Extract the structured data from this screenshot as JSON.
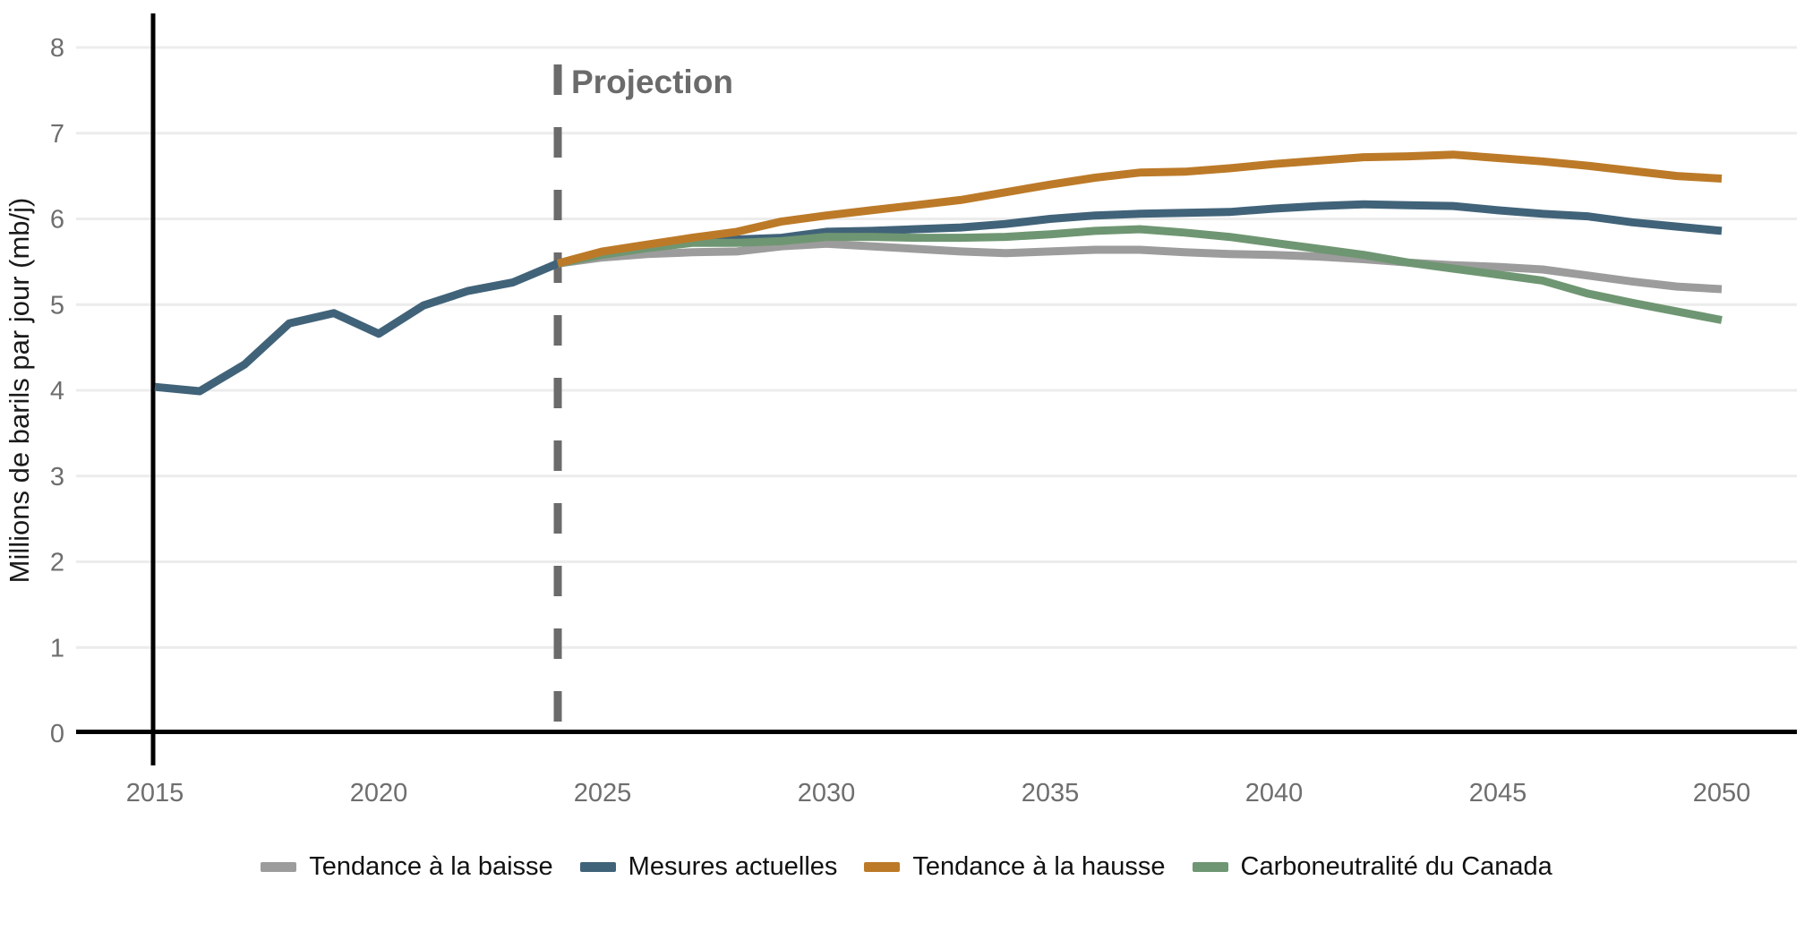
{
  "chart_data": {
    "type": "line",
    "title": "",
    "ylabel": "Millions de barils par jour (mb/j)",
    "xlabel": "",
    "ylim": [
      0,
      8
    ],
    "yticks": [
      0,
      1,
      2,
      3,
      4,
      5,
      6,
      7,
      8
    ],
    "xticks": [
      2015,
      2020,
      2025,
      2030,
      2035,
      2040,
      2045,
      2050
    ],
    "grid": "horizontal",
    "legend_position": "bottom",
    "projection_marker": {
      "year": 2024,
      "label": "Projection"
    },
    "colors": {
      "grid": "#ececec",
      "axis": "#000000",
      "tick_text": "#6e6e6e",
      "projection": "#6b6b6b",
      "ylabel_text": "#1a1a1a"
    },
    "series": [
      {
        "name": "Tendance à la baisse",
        "color": "#9c9c9c",
        "z": 1,
        "start_year": 2024,
        "step": 1,
        "values": [
          5.48,
          5.55,
          5.59,
          5.61,
          5.62,
          5.68,
          5.71,
          5.68,
          5.65,
          5.62,
          5.6,
          5.62,
          5.64,
          5.64,
          5.61,
          5.59,
          5.58,
          5.56,
          5.53,
          5.49,
          5.46,
          5.44,
          5.41,
          5.34,
          5.27,
          5.21,
          5.18
        ]
      },
      {
        "name": "Mesures actuelles",
        "color": "#416379",
        "z": 2,
        "start_year": 2015,
        "step": 1,
        "values": [
          4.04,
          3.99,
          4.3,
          4.78,
          4.9,
          4.66,
          4.99,
          5.16,
          5.26,
          5.48,
          5.6,
          5.68,
          5.74,
          5.76,
          5.78,
          5.85,
          5.86,
          5.88,
          5.9,
          5.94,
          6.0,
          6.04,
          6.06,
          6.07,
          6.08,
          6.12,
          6.15,
          6.17,
          6.16,
          6.15,
          6.1,
          6.06,
          6.03,
          5.96,
          5.91,
          5.86
        ]
      },
      {
        "name": "Tendance à la hausse",
        "color": "#bc7a28",
        "z": 4,
        "start_year": 2024,
        "step": 1,
        "values": [
          5.48,
          5.62,
          5.7,
          5.78,
          5.85,
          5.97,
          6.04,
          6.1,
          6.16,
          6.22,
          6.31,
          6.4,
          6.48,
          6.54,
          6.55,
          6.59,
          6.64,
          6.68,
          6.72,
          6.73,
          6.75,
          6.71,
          6.67,
          6.62,
          6.56,
          6.5,
          6.47
        ]
      },
      {
        "name": "Carboneutralité du Canada",
        "color": "#6f9672",
        "z": 3,
        "start_year": 2024,
        "step": 1,
        "values": [
          5.48,
          5.58,
          5.66,
          5.72,
          5.72,
          5.74,
          5.79,
          5.79,
          5.78,
          5.78,
          5.79,
          5.82,
          5.86,
          5.88,
          5.84,
          5.79,
          5.72,
          5.65,
          5.58,
          5.49,
          5.42,
          5.35,
          5.28,
          5.13,
          5.02,
          4.92,
          4.82
        ]
      }
    ]
  }
}
